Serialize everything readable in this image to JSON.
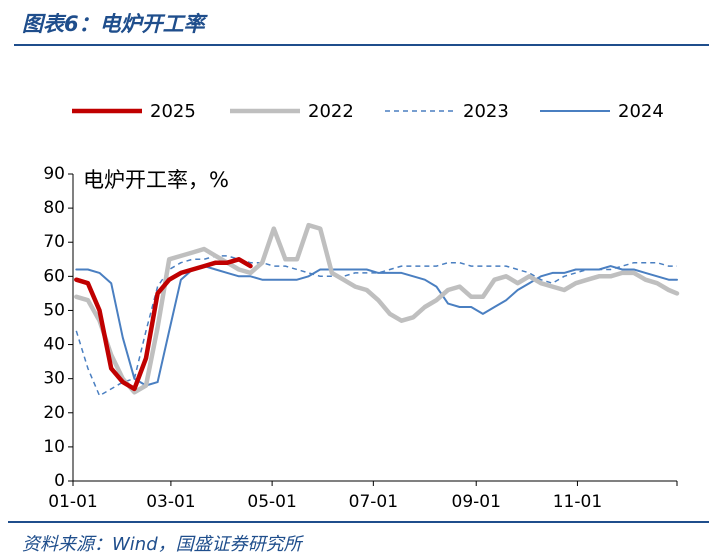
{
  "figure_title": "图表6：电炉开工率",
  "source": "资料来源：Wind，国盛证券研究所",
  "chart_data": {
    "type": "line",
    "ylabel": "电炉开工率，%",
    "ylim": [
      0,
      90
    ],
    "yticks": [
      0,
      10,
      20,
      30,
      40,
      50,
      60,
      70,
      80,
      90
    ],
    "xlim": [
      "01-01",
      "12-31"
    ],
    "xticks": [
      "01-01",
      "03-01",
      "05-01",
      "07-01",
      "09-01",
      "11-01"
    ],
    "legend_position": "top",
    "series": [
      {
        "name": "2025",
        "color": "#c00000",
        "dash": "solid",
        "width": 4.5,
        "points": [
          [
            "01-03",
            59
          ],
          [
            "01-10",
            58
          ],
          [
            "01-17",
            50
          ],
          [
            "01-24",
            33
          ],
          [
            "01-31",
            29
          ],
          [
            "02-07",
            27
          ],
          [
            "02-14",
            36
          ],
          [
            "02-21",
            55
          ],
          [
            "02-28",
            59
          ],
          [
            "03-07",
            61
          ],
          [
            "03-14",
            62
          ],
          [
            "03-21",
            63
          ],
          [
            "03-28",
            64
          ],
          [
            "04-04",
            64
          ],
          [
            "04-11",
            65
          ],
          [
            "04-18",
            63
          ]
        ]
      },
      {
        "name": "2022",
        "color": "#bfbfbf",
        "dash": "solid",
        "width": 4.5,
        "points": [
          [
            "01-03",
            54
          ],
          [
            "01-10",
            53
          ],
          [
            "01-17",
            47
          ],
          [
            "01-24",
            37
          ],
          [
            "01-31",
            30
          ],
          [
            "02-07",
            26
          ],
          [
            "02-14",
            28
          ],
          [
            "02-21",
            45
          ],
          [
            "02-28",
            65
          ],
          [
            "03-07",
            66
          ],
          [
            "03-14",
            67
          ],
          [
            "03-21",
            68
          ],
          [
            "03-28",
            66
          ],
          [
            "04-04",
            64
          ],
          [
            "04-11",
            62
          ],
          [
            "04-18",
            61
          ],
          [
            "04-25",
            64
          ],
          [
            "05-02",
            74
          ],
          [
            "05-09",
            65
          ],
          [
            "05-16",
            65
          ],
          [
            "05-23",
            75
          ],
          [
            "05-30",
            74
          ],
          [
            "06-06",
            61
          ],
          [
            "06-13",
            59
          ],
          [
            "06-20",
            57
          ],
          [
            "06-27",
            56
          ],
          [
            "07-04",
            53
          ],
          [
            "07-11",
            49
          ],
          [
            "07-18",
            47
          ],
          [
            "07-25",
            48
          ],
          [
            "08-01",
            51
          ],
          [
            "08-08",
            53
          ],
          [
            "08-15",
            56
          ],
          [
            "08-22",
            57
          ],
          [
            "08-29",
            54
          ],
          [
            "09-05",
            54
          ],
          [
            "09-12",
            59
          ],
          [
            "09-19",
            60
          ],
          [
            "09-26",
            58
          ],
          [
            "10-03",
            60
          ],
          [
            "10-10",
            58
          ],
          [
            "10-17",
            57
          ],
          [
            "10-24",
            56
          ],
          [
            "10-31",
            58
          ],
          [
            "11-07",
            59
          ],
          [
            "11-14",
            60
          ],
          [
            "11-21",
            60
          ],
          [
            "11-28",
            61
          ],
          [
            "12-05",
            61
          ],
          [
            "12-12",
            59
          ],
          [
            "12-19",
            58
          ],
          [
            "12-26",
            56
          ],
          [
            "12-31",
            55
          ]
        ]
      },
      {
        "name": "2023",
        "color": "#4a7fc1",
        "dash": "dashed",
        "width": 1.5,
        "points": [
          [
            "01-03",
            44
          ],
          [
            "01-10",
            33
          ],
          [
            "01-17",
            25
          ],
          [
            "01-24",
            27
          ],
          [
            "01-31",
            29
          ],
          [
            "02-07",
            30
          ],
          [
            "02-14",
            44
          ],
          [
            "02-21",
            57
          ],
          [
            "02-28",
            62
          ],
          [
            "03-07",
            64
          ],
          [
            "03-14",
            65
          ],
          [
            "03-21",
            65
          ],
          [
            "03-28",
            66
          ],
          [
            "04-04",
            66
          ],
          [
            "04-11",
            65
          ],
          [
            "04-18",
            64
          ],
          [
            "04-25",
            64
          ],
          [
            "05-02",
            63
          ],
          [
            "05-09",
            63
          ],
          [
            "05-16",
            62
          ],
          [
            "05-23",
            61
          ],
          [
            "05-30",
            60
          ],
          [
            "06-06",
            60
          ],
          [
            "06-13",
            60
          ],
          [
            "06-20",
            61
          ],
          [
            "06-27",
            61
          ],
          [
            "07-04",
            61
          ],
          [
            "07-11",
            62
          ],
          [
            "07-18",
            63
          ],
          [
            "07-25",
            63
          ],
          [
            "08-01",
            63
          ],
          [
            "08-08",
            63
          ],
          [
            "08-15",
            64
          ],
          [
            "08-22",
            64
          ],
          [
            "08-29",
            63
          ],
          [
            "09-05",
            63
          ],
          [
            "09-12",
            63
          ],
          [
            "09-19",
            63
          ],
          [
            "09-26",
            62
          ],
          [
            "10-03",
            61
          ],
          [
            "10-10",
            59
          ],
          [
            "10-17",
            58
          ],
          [
            "10-24",
            60
          ],
          [
            "10-31",
            61
          ],
          [
            "11-07",
            62
          ],
          [
            "11-14",
            62
          ],
          [
            "11-21",
            62
          ],
          [
            "11-28",
            63
          ],
          [
            "12-05",
            64
          ],
          [
            "12-12",
            64
          ],
          [
            "12-19",
            64
          ],
          [
            "12-26",
            63
          ],
          [
            "12-31",
            63
          ]
        ]
      },
      {
        "name": "2024",
        "color": "#4a7fc1",
        "dash": "solid",
        "width": 2,
        "points": [
          [
            "01-03",
            62
          ],
          [
            "01-10",
            62
          ],
          [
            "01-17",
            61
          ],
          [
            "01-24",
            58
          ],
          [
            "01-31",
            42
          ],
          [
            "02-07",
            30
          ],
          [
            "02-14",
            28
          ],
          [
            "02-21",
            29
          ],
          [
            "02-28",
            44
          ],
          [
            "03-07",
            59
          ],
          [
            "03-14",
            62
          ],
          [
            "03-21",
            63
          ],
          [
            "03-28",
            62
          ],
          [
            "04-04",
            61
          ],
          [
            "04-11",
            60
          ],
          [
            "04-18",
            60
          ],
          [
            "04-25",
            59
          ],
          [
            "05-02",
            59
          ],
          [
            "05-09",
            59
          ],
          [
            "05-16",
            59
          ],
          [
            "05-23",
            60
          ],
          [
            "05-30",
            62
          ],
          [
            "06-06",
            62
          ],
          [
            "06-13",
            62
          ],
          [
            "06-20",
            62
          ],
          [
            "06-27",
            62
          ],
          [
            "07-04",
            61
          ],
          [
            "07-11",
            61
          ],
          [
            "07-18",
            61
          ],
          [
            "07-25",
            60
          ],
          [
            "08-01",
            59
          ],
          [
            "08-08",
            57
          ],
          [
            "08-15",
            52
          ],
          [
            "08-22",
            51
          ],
          [
            "08-29",
            51
          ],
          [
            "09-05",
            49
          ],
          [
            "09-12",
            51
          ],
          [
            "09-19",
            53
          ],
          [
            "09-26",
            56
          ],
          [
            "10-03",
            58
          ],
          [
            "10-10",
            60
          ],
          [
            "10-17",
            61
          ],
          [
            "10-24",
            61
          ],
          [
            "10-31",
            62
          ],
          [
            "11-07",
            62
          ],
          [
            "11-14",
            62
          ],
          [
            "11-21",
            63
          ],
          [
            "11-28",
            62
          ],
          [
            "12-05",
            62
          ],
          [
            "12-12",
            61
          ],
          [
            "12-19",
            60
          ],
          [
            "12-26",
            59
          ],
          [
            "12-31",
            59
          ]
        ]
      }
    ]
  }
}
